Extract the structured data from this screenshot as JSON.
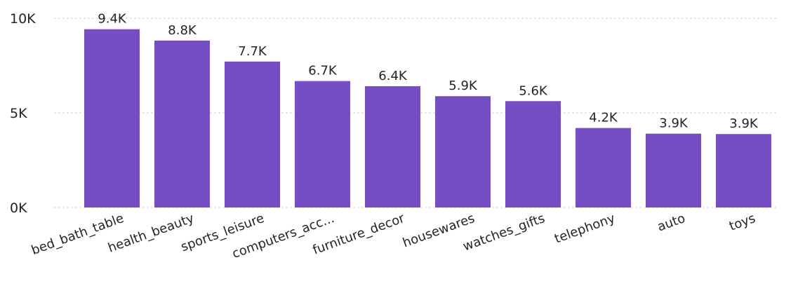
{
  "chart_data": {
    "type": "bar",
    "categories": [
      "bed_bath_table",
      "health_beauty",
      "sports_leisure",
      "computers_acc...",
      "furniture_decor",
      "housewares",
      "watches_gifts",
      "telephony",
      "auto",
      "toys"
    ],
    "values": [
      9420,
      8820,
      7710,
      6680,
      6410,
      5880,
      5620,
      4200,
      3900,
      3880
    ],
    "data_labels": [
      "9.4K",
      "8.8K",
      "7.7K",
      "6.7K",
      "6.4K",
      "5.9K",
      "5.6K",
      "4.2K",
      "3.9K",
      "3.9K"
    ],
    "y_ticks": [
      {
        "value": 0,
        "label": "0K"
      },
      {
        "value": 5000,
        "label": "5K"
      },
      {
        "value": 10000,
        "label": "10K"
      }
    ],
    "ylim": [
      0,
      10000
    ],
    "grid": true,
    "legend": "none",
    "bar_color": "#744EC2",
    "title": "",
    "xlabel": "",
    "ylabel": ""
  }
}
